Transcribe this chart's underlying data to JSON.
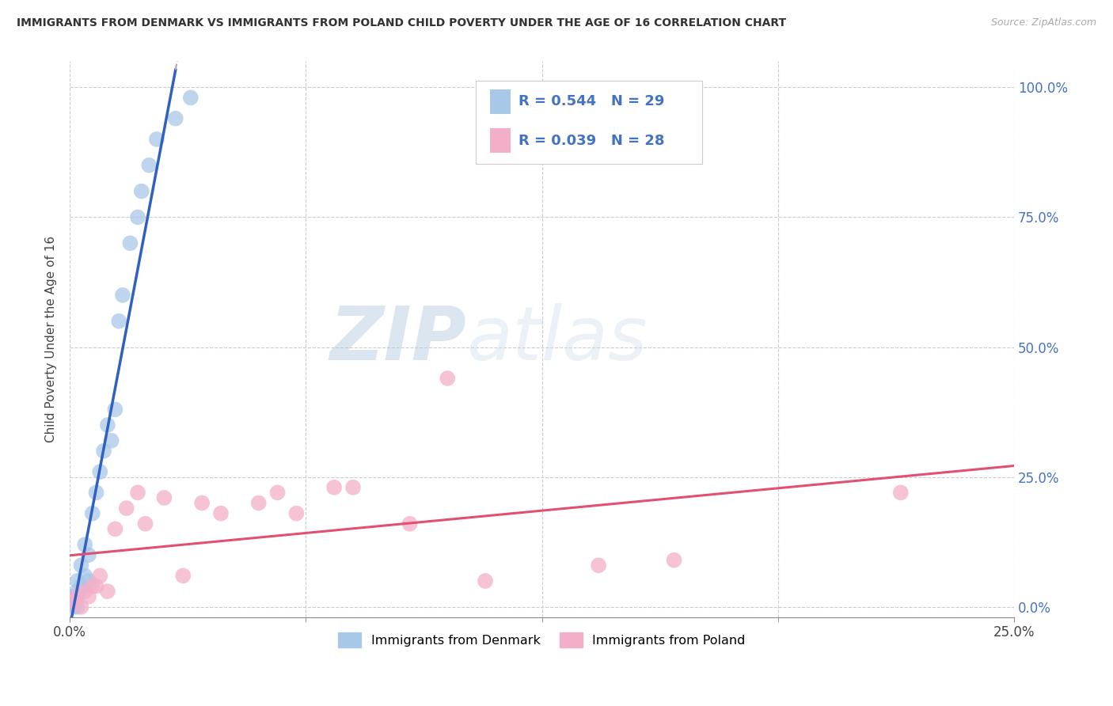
{
  "title": "IMMIGRANTS FROM DENMARK VS IMMIGRANTS FROM POLAND CHILD POVERTY UNDER THE AGE OF 16 CORRELATION CHART",
  "source": "Source: ZipAtlas.com",
  "ylabel": "Child Poverty Under the Age of 16",
  "xlim": [
    0,
    0.25
  ],
  "ylim": [
    -0.02,
    1.05
  ],
  "denmark_R": 0.544,
  "denmark_N": 29,
  "poland_R": 0.039,
  "poland_N": 28,
  "denmark_color": "#a8c8e8",
  "poland_color": "#f4afc8",
  "denmark_line_color": "#3060c0",
  "poland_line_color": "#e05070",
  "legend_denmark_label": "Immigrants from Denmark",
  "legend_poland_label": "Immigrants from Poland",
  "denmark_x": [
    0.001,
    0.001,
    0.001,
    0.002,
    0.002,
    0.002,
    0.002,
    0.003,
    0.003,
    0.004,
    0.004,
    0.005,
    0.005,
    0.006,
    0.007,
    0.008,
    0.009,
    0.01,
    0.011,
    0.012,
    0.013,
    0.014,
    0.016,
    0.018,
    0.019,
    0.021,
    0.023,
    0.028,
    0.032
  ],
  "denmark_y": [
    0.0,
    0.01,
    0.02,
    0.0,
    0.02,
    0.03,
    0.05,
    0.04,
    0.08,
    0.06,
    0.12,
    0.05,
    0.1,
    0.18,
    0.22,
    0.26,
    0.3,
    0.35,
    0.32,
    0.38,
    0.55,
    0.6,
    0.7,
    0.75,
    0.8,
    0.85,
    0.9,
    0.94,
    0.98
  ],
  "poland_x": [
    0.001,
    0.002,
    0.003,
    0.004,
    0.005,
    0.006,
    0.007,
    0.008,
    0.01,
    0.012,
    0.015,
    0.018,
    0.02,
    0.025,
    0.03,
    0.035,
    0.04,
    0.05,
    0.055,
    0.06,
    0.07,
    0.075,
    0.09,
    0.1,
    0.11,
    0.14,
    0.16,
    0.22
  ],
  "poland_y": [
    0.01,
    0.02,
    0.0,
    0.03,
    0.02,
    0.04,
    0.04,
    0.06,
    0.03,
    0.15,
    0.19,
    0.22,
    0.16,
    0.21,
    0.06,
    0.2,
    0.18,
    0.2,
    0.22,
    0.18,
    0.23,
    0.23,
    0.16,
    0.44,
    0.05,
    0.08,
    0.09,
    0.22
  ],
  "dk_line_x0": 0.0,
  "dk_line_x1": 0.028,
  "pl_line_x0": 0.0,
  "pl_line_x1": 0.25,
  "watermark_zip": "ZIP",
  "watermark_atlas": "atlas",
  "background_color": "#ffffff",
  "grid_color": "#cccccc",
  "right_tick_color": "#4472c4"
}
